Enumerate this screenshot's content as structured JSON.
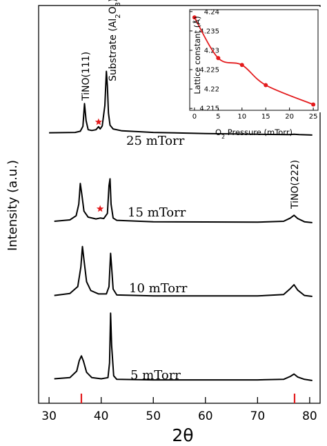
{
  "chart_data": [
    {
      "type": "line",
      "xlabel": "2θ",
      "ylabel": "Intensity (a.u.)",
      "xlim": [
        28,
        82
      ],
      "x_ticks": [
        30,
        40,
        50,
        60,
        70,
        80
      ],
      "y_ticks": "none",
      "series": [
        {
          "name": "25 mTorr",
          "x": [
            30,
            35,
            36.0,
            36.5,
            36.8,
            37.1,
            37.5,
            38.2,
            39.0,
            39.5,
            39.8,
            40.2,
            40.7,
            41.0,
            41.2,
            41.4,
            41.7,
            42.3,
            44,
            50,
            60,
            70,
            76,
            77,
            78,
            80.5
          ],
          "y": [
            0.8,
            0.9,
            1.2,
            2.5,
            8.5,
            4.0,
            1.6,
            1.4,
            1.6,
            2.4,
            1.8,
            2.6,
            8.0,
            17.0,
            13.0,
            6.0,
            2.8,
            1.8,
            1.3,
            0.9,
            0.6,
            0.4,
            0.3,
            0.4,
            0.3,
            0.2
          ]
        },
        {
          "name": "15 mTorr",
          "x": [
            31,
            34,
            35.2,
            35.7,
            36.0,
            36.3,
            36.7,
            37.5,
            39.0,
            39.8,
            40.5,
            41.2,
            41.5,
            41.7,
            41.9,
            42.3,
            43,
            50,
            60,
            70,
            75,
            76.3,
            77.0,
            77.7,
            79,
            80.5
          ],
          "y": [
            0.3,
            0.6,
            1.5,
            4.0,
            8.5,
            6.0,
            2.5,
            1.2,
            0.8,
            1.0,
            0.9,
            2.0,
            8.0,
            9.5,
            4.0,
            1.0,
            0.5,
            0.2,
            0.15,
            0.1,
            0.3,
            1.0,
            1.6,
            0.9,
            0.2,
            0.0
          ]
        },
        {
          "name": "10 mTorr",
          "x": [
            31,
            34,
            35.5,
            36.1,
            36.4,
            36.7,
            37.2,
            38.0,
            39.5,
            41.0,
            41.5,
            41.8,
            42.0,
            42.3,
            43,
            50,
            60,
            70,
            75,
            76.3,
            77.0,
            77.7,
            79,
            80.5
          ],
          "y": [
            0.2,
            0.6,
            2.0,
            6.0,
            10.2,
            7.5,
            3.0,
            1.2,
            0.5,
            0.5,
            2.0,
            8.8,
            6.0,
            1.5,
            0.3,
            0.1,
            0.1,
            0.1,
            0.4,
            1.6,
            2.4,
            1.3,
            0.2,
            0.0
          ]
        },
        {
          "name": "5 mTorr",
          "x": [
            31,
            34,
            35.3,
            35.8,
            36.2,
            36.6,
            37.2,
            38.2,
            40,
            41.3,
            41.6,
            41.8,
            42.0,
            42.4,
            43,
            50,
            60,
            70,
            75,
            76.3,
            77.0,
            77.7,
            79,
            80.5
          ],
          "y": [
            0.3,
            0.5,
            1.6,
            3.4,
            4.2,
            3.3,
            1.4,
            0.5,
            0.3,
            0.5,
            3.0,
            11.5,
            6.0,
            0.8,
            0.2,
            0.1,
            0.1,
            0.1,
            0.2,
            0.7,
            1.1,
            0.6,
            0.2,
            0.0
          ]
        }
      ],
      "trace_labels": [
        "25 mTorr",
        "15 mTorr",
        "10 mTorr",
        "5 mTorr"
      ],
      "peak_labels": {
        "tino111": "TiNO(111)",
        "substrate_main": "Substrate (Al",
        "substrate_sub1": "2",
        "substrate_o": "O",
        "substrate_sub2": "3",
        "substrate_close": ")",
        "tino222": "TiNO(222)"
      },
      "star_markers": [
        {
          "series": "25 mTorr",
          "x": 39.5
        },
        {
          "series": "15 mTorr",
          "x": 39.8
        }
      ],
      "reference_marks_x": [
        36.2,
        77.1
      ],
      "colors": {
        "line": "#000000",
        "marker": "#e31a1c"
      }
    },
    {
      "type": "scatter",
      "xlabel_main": "O",
      "xlabel_sub": "2",
      "xlabel_rest": " Pressure (mTorr)",
      "ylabel": "Lattice constant (Å)",
      "x": [
        0,
        5,
        10,
        15,
        25
      ],
      "y": [
        4.2385,
        4.228,
        4.2262,
        4.221,
        4.216
      ],
      "xlim": [
        -1,
        26
      ],
      "ylim": [
        4.2145,
        4.2405
      ],
      "x_ticks": [
        "0",
        "5",
        "10",
        "15",
        "20",
        "25"
      ],
      "y_ticks": [
        "4.215",
        "4.22",
        "4.225",
        "4.23",
        "4.235",
        "4.24"
      ],
      "colors": {
        "line": "#e31a1c",
        "marker": "#e31a1c"
      }
    }
  ]
}
